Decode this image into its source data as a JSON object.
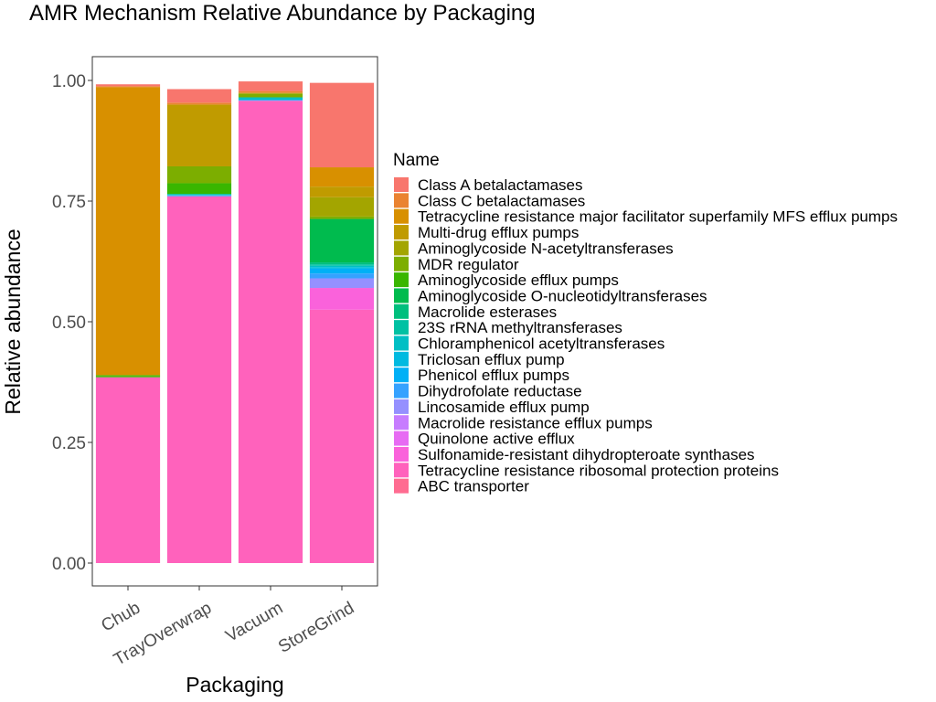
{
  "chart_data": {
    "type": "bar",
    "stacked": true,
    "title": "AMR Mechanism Relative Abundance by Packaging",
    "xlabel": "Packaging",
    "ylabel": "Relative abundance",
    "ylim": [
      0,
      1.05
    ],
    "yticks": [
      0,
      0.25,
      0.5,
      0.75,
      1.0
    ],
    "ytick_labels": [
      "0.00",
      "0.25",
      "0.50",
      "0.75",
      "1.00"
    ],
    "categories": [
      "Chub",
      "TrayOverwrap",
      "Vacuum",
      "StoreGrind"
    ],
    "legend_title": "Name",
    "legend_position": "right",
    "grid": false,
    "series": [
      {
        "name": "Class A betalactamases",
        "color": "#F8766D",
        "values": [
          0.004,
          0.028,
          0.02,
          0.175
        ]
      },
      {
        "name": "Class C betalactamases",
        "color": "#EA8331",
        "values": [
          0.002,
          0.004,
          0.004,
          0.0
        ]
      },
      {
        "name": "Tetracycline resistance major facilitator superfamily MFS efflux pumps",
        "color": "#D89000",
        "values": [
          0.596,
          0.0,
          0.0,
          0.04
        ]
      },
      {
        "name": "Multi-drug efflux pumps",
        "color": "#C09B00",
        "values": [
          0.0,
          0.128,
          0.0,
          0.022
        ]
      },
      {
        "name": "Aminoglycoside N-acetyltransferases",
        "color": "#A3A500",
        "values": [
          0.0,
          0.0,
          0.002,
          0.04
        ]
      },
      {
        "name": "MDR regulator",
        "color": "#7CAE00",
        "values": [
          0.002,
          0.035,
          0.007,
          0.005
        ]
      },
      {
        "name": "Aminoglycoside efflux pumps",
        "color": "#39B600",
        "values": [
          0.003,
          0.022,
          0.0,
          0.0
        ]
      },
      {
        "name": "Aminoglycoside O-nucleotidyltransferases",
        "color": "#00BB4E",
        "values": [
          0.0,
          0.0,
          0.0,
          0.09
        ]
      },
      {
        "name": "Macrolide esterases",
        "color": "#00BF7D",
        "values": [
          0.0,
          0.0,
          0.0,
          0.004
        ]
      },
      {
        "name": "23S rRNA methyltransferases",
        "color": "#00C1A3",
        "values": [
          0.0,
          0.002,
          0.0,
          0.003
        ]
      },
      {
        "name": "Chloramphenicol acetyltransferases",
        "color": "#00BFC4",
        "values": [
          0.0,
          0.001,
          0.005,
          0.003
        ]
      },
      {
        "name": "Triclosan efflux pump",
        "color": "#00BAE0",
        "values": [
          0.0,
          0.0,
          0.0,
          0.003
        ]
      },
      {
        "name": "Phenicol efflux pumps",
        "color": "#00B0F6",
        "values": [
          0.0,
          0.0,
          0.0,
          0.01
        ]
      },
      {
        "name": "Dihydrofolate reductase",
        "color": "#35A2FF",
        "values": [
          0.0,
          0.002,
          0.002,
          0.01
        ]
      },
      {
        "name": "Lincosamide efflux pump",
        "color": "#9590FF",
        "values": [
          0.0,
          0.0,
          0.0,
          0.02
        ]
      },
      {
        "name": "Macrolide resistance efflux pumps",
        "color": "#C77CFF",
        "values": [
          0.0,
          0.0,
          0.0,
          0.0
        ]
      },
      {
        "name": "Quinolone active efflux",
        "color": "#E76BF3",
        "values": [
          0.0,
          0.0,
          0.0,
          0.0
        ]
      },
      {
        "name": "Sulfonamide-resistant dihydropteroate synthases",
        "color": "#FA62DB",
        "values": [
          0.0,
          0.0,
          0.0,
          0.045
        ]
      },
      {
        "name": "Tetracycline resistance ribosomal protection proteins",
        "color": "#FF62BC",
        "values": [
          0.385,
          0.76,
          0.958,
          0.525
        ]
      },
      {
        "name": "ABC transporter",
        "color": "#FF6C91",
        "values": [
          0.0,
          0.0,
          0.0,
          0.0
        ]
      }
    ]
  }
}
